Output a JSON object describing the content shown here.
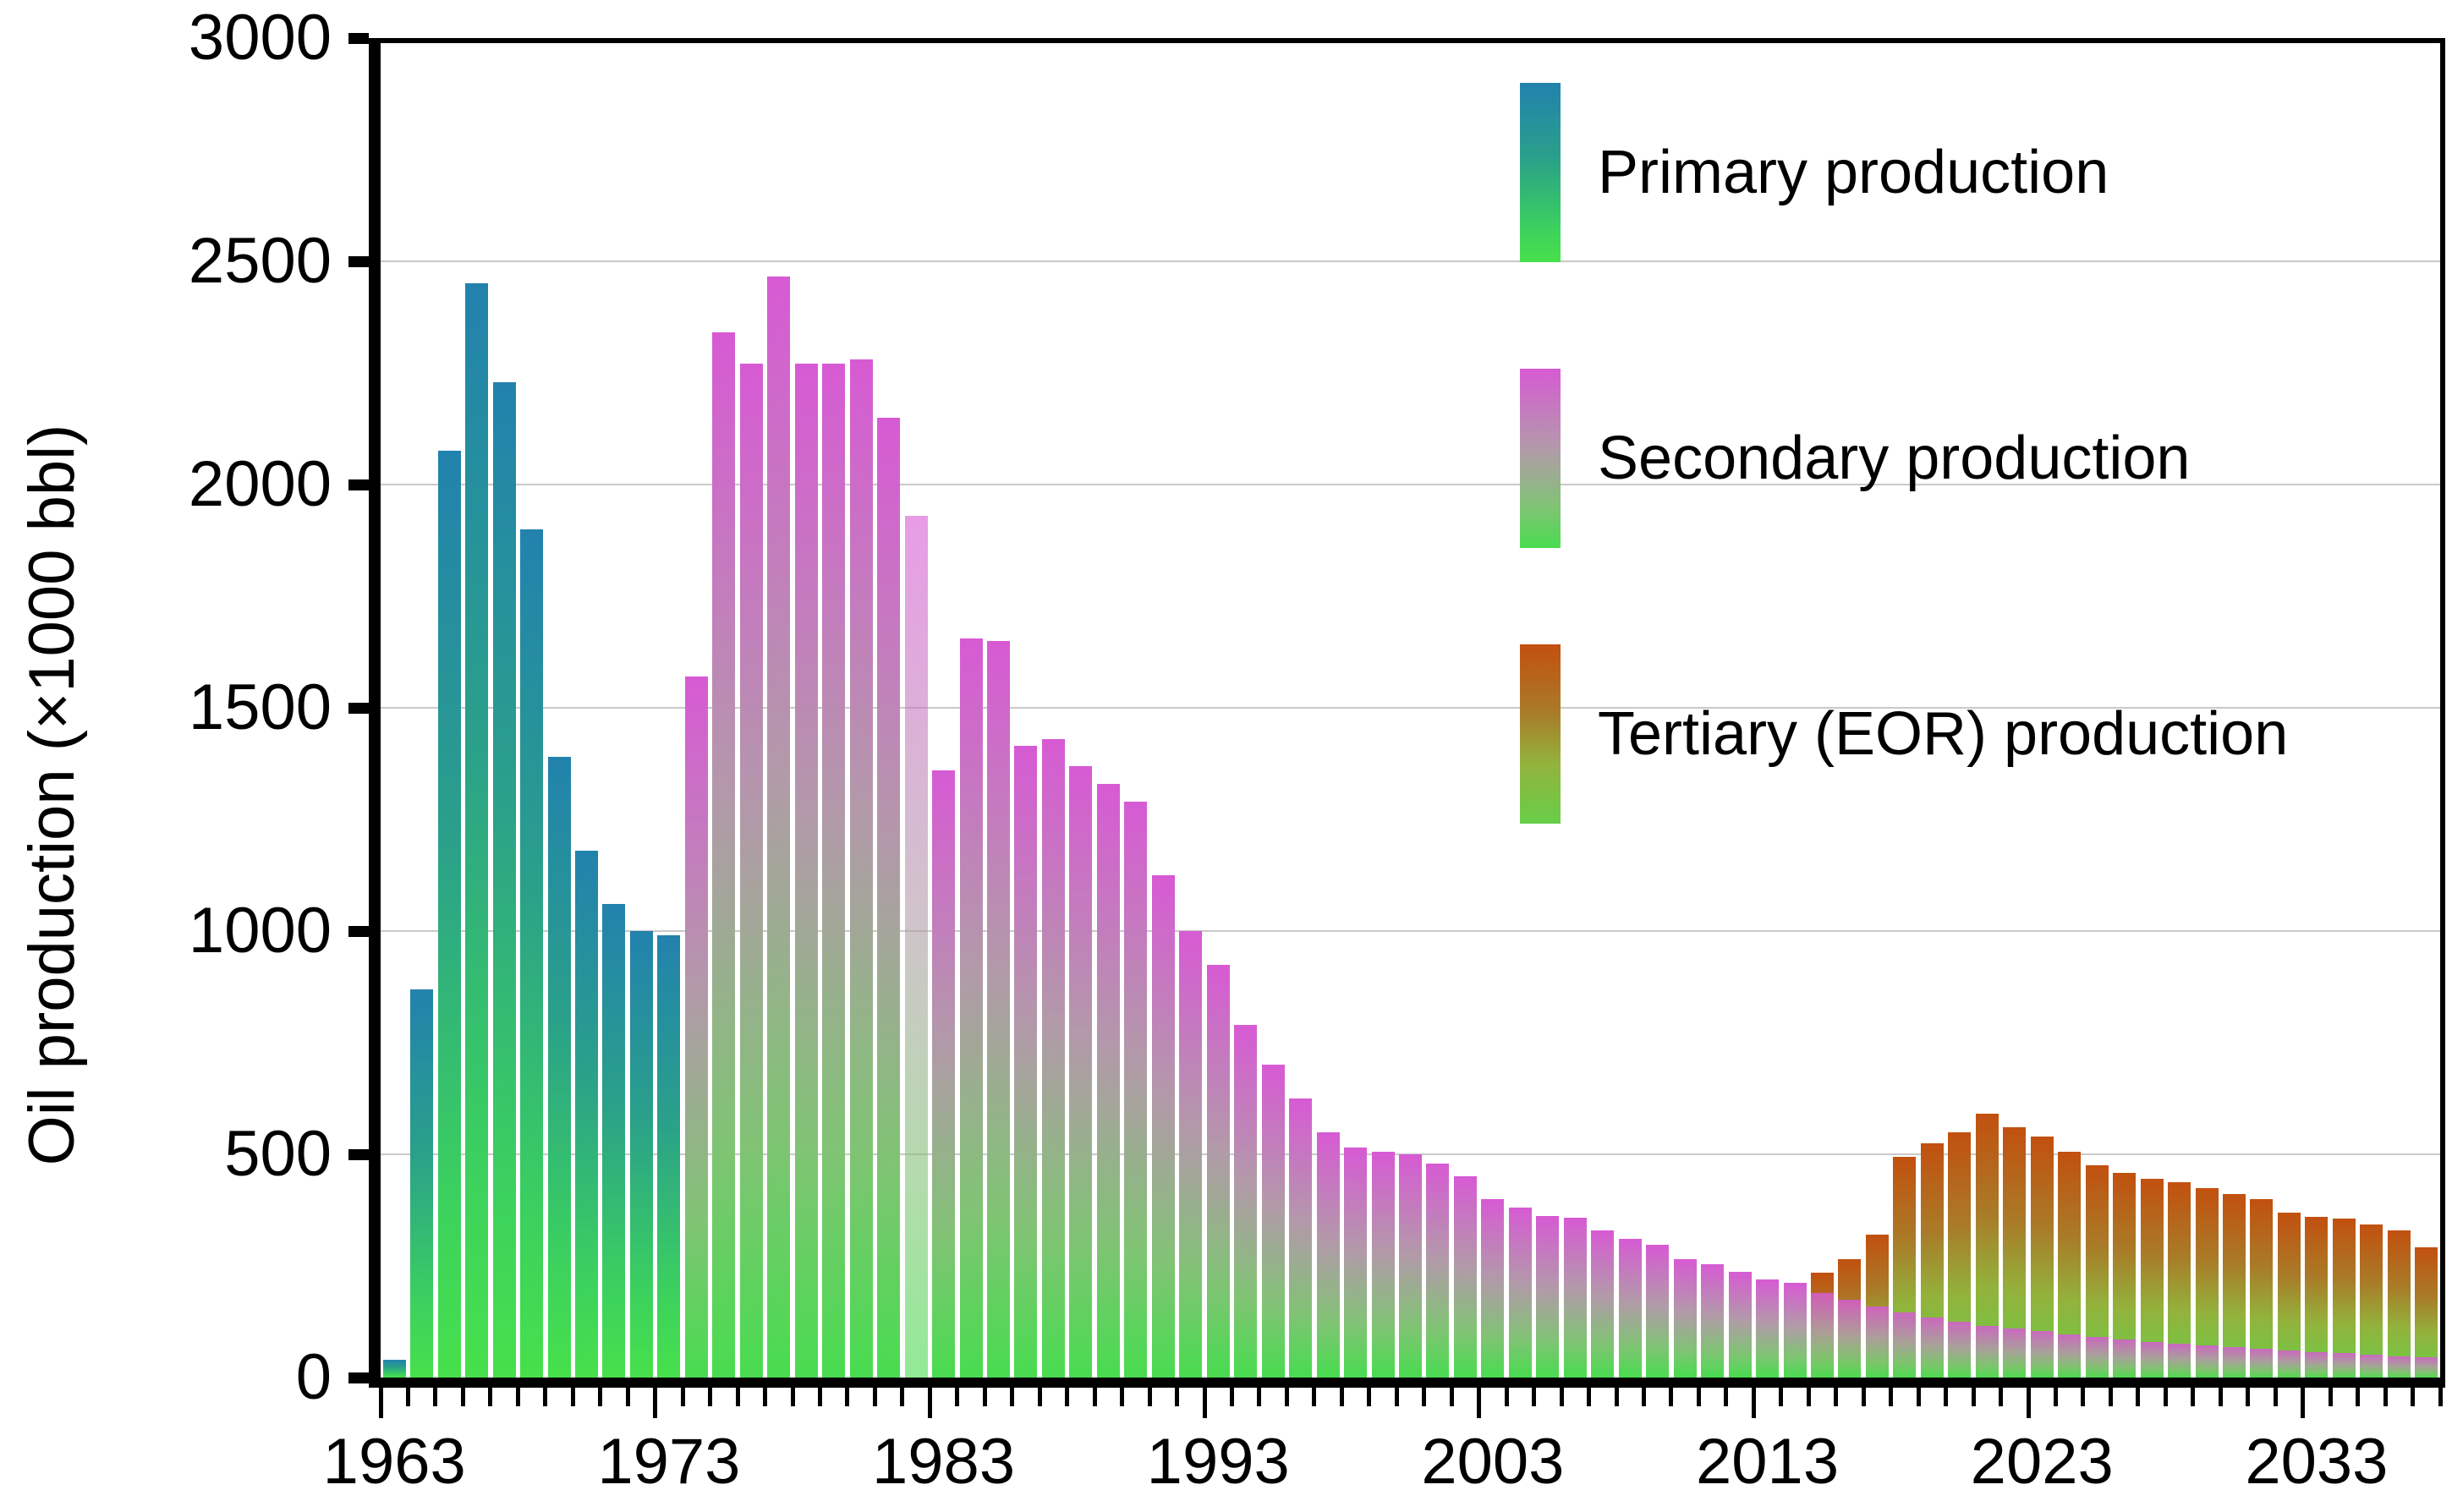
{
  "page": {
    "background": "#ffffff"
  },
  "y_axis": {
    "title": "Oil production (×1000 bbl)",
    "min": 0,
    "max": 3000,
    "tick_step": 500,
    "tick_labels": [
      "0",
      "500",
      "1000",
      "1500",
      "2000",
      "2500",
      "3000"
    ]
  },
  "x_axis": {
    "first_year": 1963,
    "last_year": 2037,
    "decade_labels": [
      "1963",
      "1973",
      "1983",
      "1993",
      "2003",
      "2013",
      "2023",
      "2033"
    ]
  },
  "legend": {
    "items": [
      {
        "label": "Primary production"
      },
      {
        "label": "Secondary production"
      },
      {
        "label": "Tertiary (EOR) production"
      }
    ]
  },
  "chart_data": {
    "type": "bar",
    "title": "",
    "xlabel": "",
    "ylabel": "Oil production (×1000 bbl)",
    "ylim": [
      0,
      3000
    ],
    "gridline_step": 500,
    "grid": "horizontal",
    "legend_position": "top-right",
    "years_range": [
      1963,
      2037
    ],
    "decade_tick_years": [
      1963,
      1973,
      1983,
      1993,
      2003,
      2013,
      2023,
      2033
    ],
    "series": [
      {
        "name": "Primary production",
        "start_year": 1963,
        "gradient": [
          [
            "#2282ad",
            0
          ],
          [
            "#2aa08a",
            42
          ],
          [
            "#3cd25d",
            82
          ],
          [
            "#47e04b",
            100
          ]
        ],
        "values": [
          40,
          870,
          2075,
          2450,
          2230,
          1900,
          1390,
          1180,
          1060,
          1000,
          990
        ]
      },
      {
        "name": "Secondary production",
        "start_year": 1974,
        "gradient": [
          [
            "#d75ad4",
            0
          ],
          [
            "#b29aa9",
            45
          ],
          [
            "#7fc473",
            78
          ],
          [
            "#48dc4f",
            100
          ]
        ],
        "faded_years": [
          1982
        ],
        "faded_opacity": 0.6,
        "values": [
          1570,
          2340,
          2270,
          2465,
          2270,
          2270,
          2280,
          2150,
          1930,
          1360,
          1655,
          1650,
          1415,
          1430,
          1370,
          1330,
          1290,
          1125,
          1000,
          925,
          790,
          700,
          625,
          550,
          515,
          505,
          500,
          480,
          450,
          400,
          380,
          362,
          358,
          330,
          310,
          298,
          266,
          253,
          236,
          220,
          212,
          190,
          175,
          160,
          145,
          135,
          125,
          115,
          110,
          105,
          96,
          90,
          85,
          80,
          76,
          72,
          68,
          64,
          60,
          57,
          54,
          51,
          48,
          45
        ]
      },
      {
        "name": "Tertiary (EOR) production",
        "start_year": 2015,
        "gradient": [
          [
            "#c2500f",
            0
          ],
          [
            "#a97b28",
            38
          ],
          [
            "#93b23c",
            66
          ],
          [
            "#68ce48",
            100
          ]
        ],
        "values": [
          235,
          265,
          320,
          495,
          525,
          550,
          590,
          560,
          540,
          505,
          475,
          458,
          445,
          437,
          424,
          411,
          399,
          369,
          360,
          356,
          343,
          330,
          292
        ]
      }
    ]
  }
}
